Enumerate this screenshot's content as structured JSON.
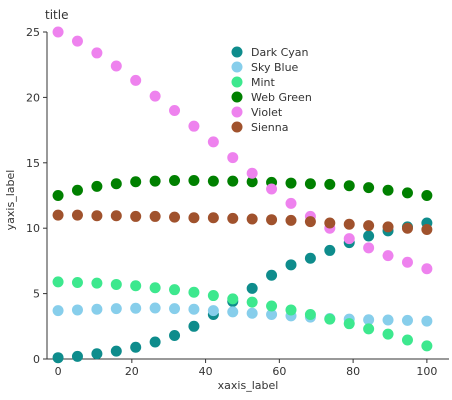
{
  "chart_data": {
    "type": "scatter",
    "title": "title",
    "xlabel": "xaxis_label",
    "ylabel": "yaxis_label",
    "xlim": [
      -3,
      106
    ],
    "ylim": [
      0,
      25
    ],
    "xticks": [
      0,
      20,
      40,
      60,
      80,
      100
    ],
    "yticks": [
      0,
      5,
      10,
      15,
      20,
      25
    ],
    "grid": false,
    "legend_position": "top-center",
    "x": [
      0,
      5.26,
      10.53,
      15.79,
      21.05,
      26.32,
      31.58,
      36.84,
      42.11,
      47.37,
      52.63,
      57.89,
      63.16,
      68.42,
      73.68,
      78.95,
      84.21,
      89.47,
      94.74,
      100
    ],
    "series": [
      {
        "name": "Dark Cyan",
        "color": "#0e8c8c",
        "values": [
          0.1,
          0.2,
          0.4,
          0.6,
          0.9,
          1.3,
          1.8,
          2.5,
          3.4,
          4.4,
          5.4,
          6.4,
          7.2,
          7.7,
          8.3,
          8.9,
          9.4,
          9.8,
          10.1,
          10.4
        ]
      },
      {
        "name": "Sky Blue",
        "color": "#87ceeb",
        "values": [
          3.7,
          3.75,
          3.8,
          3.85,
          3.88,
          3.9,
          3.85,
          3.8,
          3.7,
          3.6,
          3.5,
          3.4,
          3.3,
          3.2,
          3.1,
          3.05,
          3.0,
          2.98,
          2.95,
          2.9
        ]
      },
      {
        "name": "Mint",
        "color": "#3de88e",
        "values": [
          5.9,
          5.85,
          5.8,
          5.7,
          5.6,
          5.45,
          5.3,
          5.1,
          4.85,
          4.6,
          4.35,
          4.05,
          3.75,
          3.4,
          3.05,
          2.7,
          2.3,
          1.9,
          1.45,
          1.0
        ]
      },
      {
        "name": "Web Green",
        "color": "#008000",
        "values": [
          12.5,
          12.9,
          13.2,
          13.4,
          13.55,
          13.6,
          13.65,
          13.65,
          13.6,
          13.6,
          13.55,
          13.5,
          13.45,
          13.4,
          13.35,
          13.25,
          13.1,
          12.9,
          12.7,
          12.5
        ]
      },
      {
        "name": "Violet",
        "color": "#ee82ee",
        "values": [
          25.0,
          24.3,
          23.4,
          22.4,
          21.3,
          20.1,
          19.0,
          17.8,
          16.6,
          15.4,
          14.2,
          13.0,
          11.9,
          10.9,
          10.0,
          9.2,
          8.5,
          7.9,
          7.4,
          6.9
        ]
      },
      {
        "name": "Sienna",
        "color": "#a0522d",
        "values": [
          11.0,
          11.0,
          10.95,
          10.95,
          10.9,
          10.9,
          10.85,
          10.8,
          10.8,
          10.75,
          10.7,
          10.65,
          10.6,
          10.5,
          10.4,
          10.3,
          10.2,
          10.1,
          10.0,
          9.9
        ]
      }
    ]
  }
}
